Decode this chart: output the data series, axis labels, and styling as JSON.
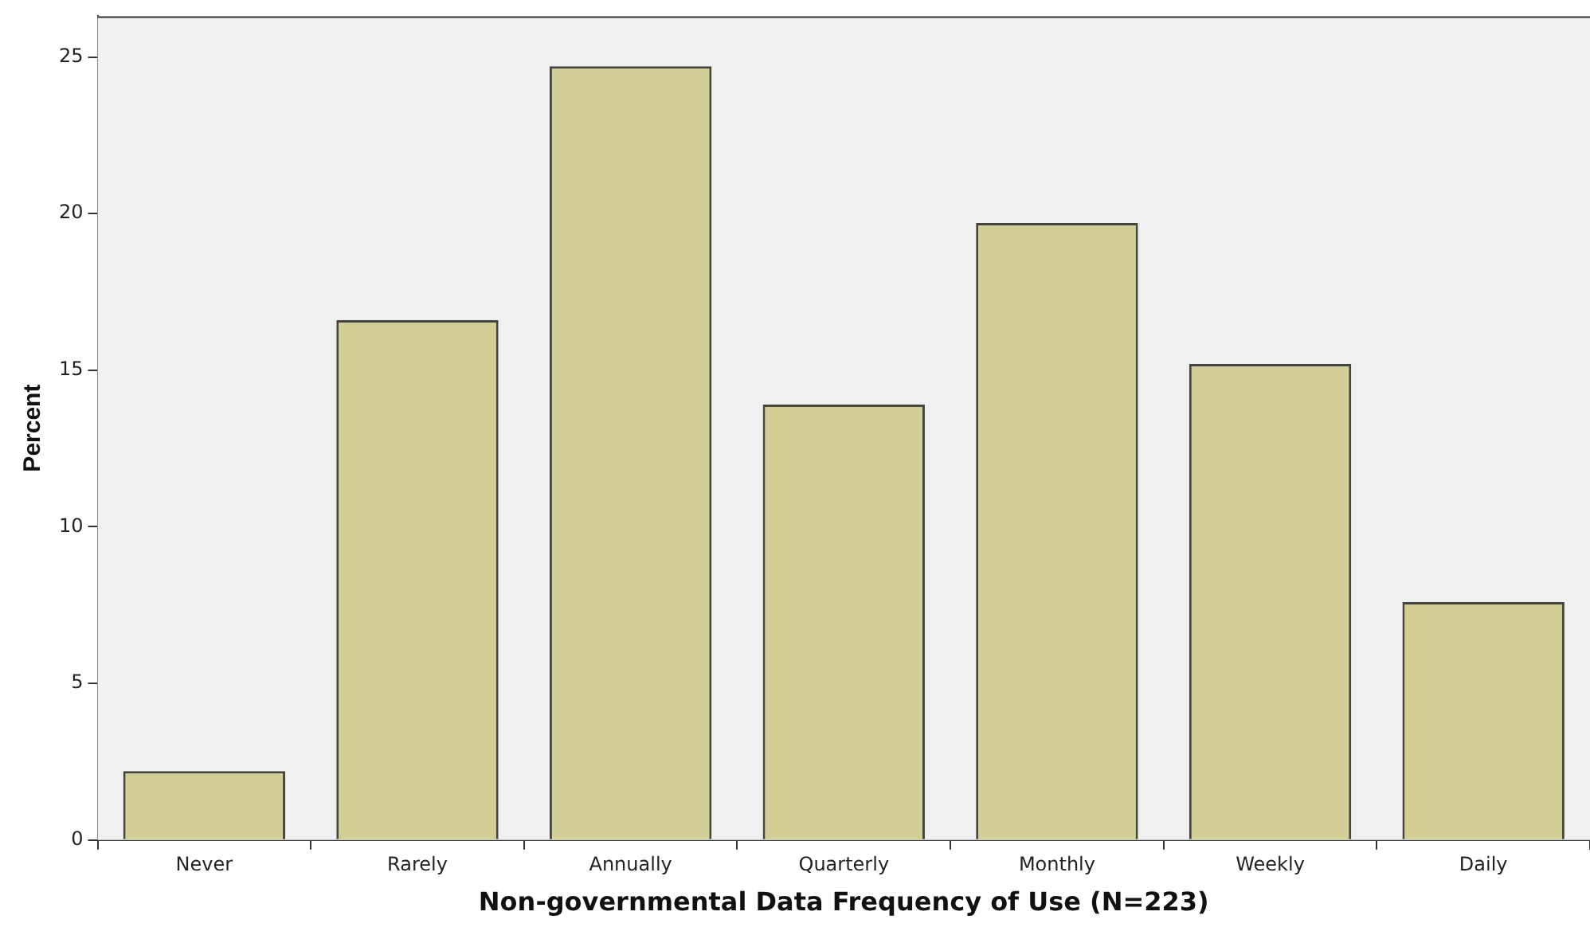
{
  "chart_data": {
    "type": "bar",
    "xlabel": "Non-governmental Data Frequency of Use (N=223)",
    "ylabel": "Percent",
    "categories": [
      "Never",
      "Rarely",
      "Annually",
      "Quarterly",
      "Monthly",
      "Weekly",
      "Daily"
    ],
    "values": [
      2.2,
      16.6,
      24.7,
      13.9,
      19.7,
      15.2,
      7.6
    ],
    "color": "#d3cd96",
    "ylim": [
      0,
      26.3
    ],
    "yticks": [
      0,
      5,
      10,
      15,
      20,
      25
    ],
    "grid": false,
    "legend": false
  }
}
